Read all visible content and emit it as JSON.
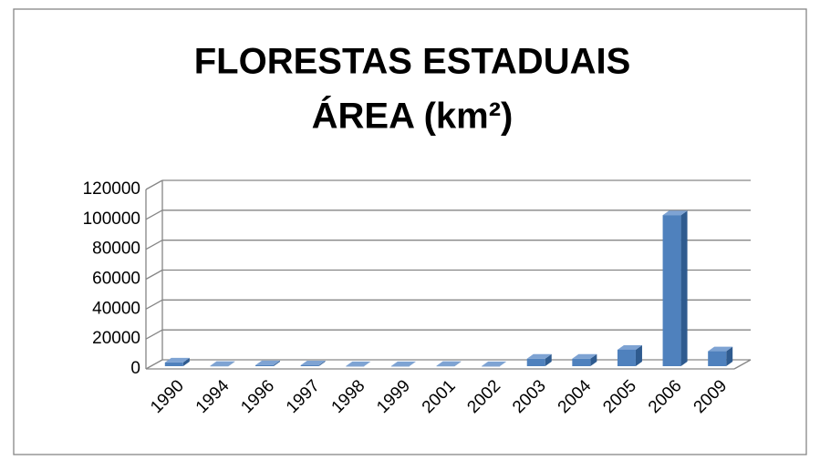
{
  "chart_data": {
    "type": "bar",
    "title": "FLORESTAS ESTADUAIS",
    "subtitle": "ÁREA (km²)",
    "categories": [
      "1990",
      "1994",
      "1996",
      "1997",
      "1998",
      "1999",
      "2001",
      "2002",
      "2003",
      "2004",
      "2005",
      "2006",
      "2009"
    ],
    "values": [
      2500,
      200,
      700,
      600,
      100,
      100,
      200,
      100,
      5000,
      5000,
      11000,
      101000,
      10000
    ],
    "color": "#4f81bd",
    "ylim": [
      0,
      120000
    ],
    "yticks": [
      0,
      20000,
      40000,
      60000,
      80000,
      100000,
      120000
    ],
    "grid": true
  }
}
